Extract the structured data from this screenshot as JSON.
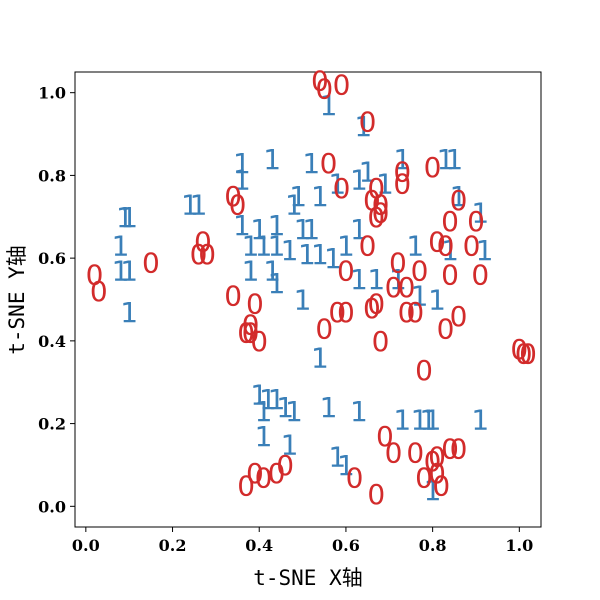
{
  "chart_data": {
    "type": "scatter",
    "title": "",
    "xlabel": "t-SNE X轴",
    "ylabel": "t-SNE Y轴",
    "xlim": [
      -0.025,
      1.05
    ],
    "ylim": [
      -0.05,
      1.05
    ],
    "xticks": [
      "0.0",
      "0.2",
      "0.4",
      "0.6",
      "0.8",
      "1.0"
    ],
    "yticks": [
      "0.0",
      "0.2",
      "0.4",
      "0.6",
      "0.8",
      "1.0"
    ],
    "grid": false,
    "legend": "none",
    "series": [
      {
        "marker": "1",
        "color": "#3a7fb8",
        "points": [
          [
            0.56,
            0.97
          ],
          [
            0.64,
            0.92
          ],
          [
            0.43,
            0.84
          ],
          [
            0.52,
            0.83
          ],
          [
            0.36,
            0.83
          ],
          [
            0.36,
            0.79
          ],
          [
            0.73,
            0.84
          ],
          [
            0.83,
            0.84
          ],
          [
            0.85,
            0.84
          ],
          [
            0.63,
            0.79
          ],
          [
            0.65,
            0.81
          ],
          [
            0.69,
            0.78
          ],
          [
            0.58,
            0.78
          ],
          [
            0.24,
            0.73
          ],
          [
            0.26,
            0.73
          ],
          [
            0.48,
            0.73
          ],
          [
            0.49,
            0.75
          ],
          [
            0.54,
            0.75
          ],
          [
            0.86,
            0.75
          ],
          [
            0.91,
            0.71
          ],
          [
            0.09,
            0.7
          ],
          [
            0.1,
            0.7
          ],
          [
            0.36,
            0.68
          ],
          [
            0.4,
            0.67
          ],
          [
            0.44,
            0.68
          ],
          [
            0.5,
            0.67
          ],
          [
            0.52,
            0.67
          ],
          [
            0.63,
            0.67
          ],
          [
            0.08,
            0.63
          ],
          [
            0.38,
            0.63
          ],
          [
            0.41,
            0.63
          ],
          [
            0.44,
            0.63
          ],
          [
            0.47,
            0.62
          ],
          [
            0.51,
            0.61
          ],
          [
            0.54,
            0.61
          ],
          [
            0.57,
            0.6
          ],
          [
            0.6,
            0.63
          ],
          [
            0.76,
            0.63
          ],
          [
            0.84,
            0.62
          ],
          [
            0.92,
            0.62
          ],
          [
            0.08,
            0.57
          ],
          [
            0.1,
            0.57
          ],
          [
            0.38,
            0.57
          ],
          [
            0.43,
            0.57
          ],
          [
            0.44,
            0.54
          ],
          [
            0.67,
            0.55
          ],
          [
            0.63,
            0.55
          ],
          [
            0.72,
            0.55
          ],
          [
            0.77,
            0.51
          ],
          [
            0.1,
            0.47
          ],
          [
            0.5,
            0.5
          ],
          [
            0.81,
            0.5
          ],
          [
            0.54,
            0.36
          ],
          [
            0.4,
            0.27
          ],
          [
            0.42,
            0.26
          ],
          [
            0.44,
            0.26
          ],
          [
            0.46,
            0.24
          ],
          [
            0.41,
            0.23
          ],
          [
            0.48,
            0.23
          ],
          [
            0.56,
            0.24
          ],
          [
            0.63,
            0.23
          ],
          [
            0.73,
            0.21
          ],
          [
            0.77,
            0.21
          ],
          [
            0.79,
            0.21
          ],
          [
            0.8,
            0.21
          ],
          [
            0.91,
            0.21
          ],
          [
            0.41,
            0.17
          ],
          [
            0.47,
            0.15
          ],
          [
            0.58,
            0.12
          ],
          [
            0.6,
            0.1
          ],
          [
            0.8,
            0.04
          ]
        ]
      },
      {
        "marker": "0",
        "color": "#d22b2b",
        "points": [
          [
            0.54,
            1.03
          ],
          [
            0.55,
            1.01
          ],
          [
            0.59,
            1.02
          ],
          [
            0.65,
            0.93
          ],
          [
            0.56,
            0.83
          ],
          [
            0.73,
            0.81
          ],
          [
            0.8,
            0.82
          ],
          [
            0.67,
            0.77
          ],
          [
            0.73,
            0.78
          ],
          [
            0.59,
            0.77
          ],
          [
            0.34,
            0.75
          ],
          [
            0.35,
            0.73
          ],
          [
            0.66,
            0.74
          ],
          [
            0.68,
            0.73
          ],
          [
            0.86,
            0.74
          ],
          [
            0.67,
            0.7
          ],
          [
            0.68,
            0.71
          ],
          [
            0.84,
            0.69
          ],
          [
            0.9,
            0.69
          ],
          [
            0.27,
            0.64
          ],
          [
            0.28,
            0.61
          ],
          [
            0.26,
            0.61
          ],
          [
            0.81,
            0.64
          ],
          [
            0.83,
            0.63
          ],
          [
            0.65,
            0.63
          ],
          [
            0.89,
            0.63
          ],
          [
            0.02,
            0.56
          ],
          [
            0.03,
            0.52
          ],
          [
            0.15,
            0.59
          ],
          [
            0.72,
            0.59
          ],
          [
            0.6,
            0.57
          ],
          [
            0.77,
            0.57
          ],
          [
            0.84,
            0.56
          ],
          [
            0.91,
            0.56
          ],
          [
            0.71,
            0.53
          ],
          [
            0.74,
            0.53
          ],
          [
            0.34,
            0.51
          ],
          [
            0.39,
            0.49
          ],
          [
            0.67,
            0.49
          ],
          [
            0.66,
            0.48
          ],
          [
            0.74,
            0.47
          ],
          [
            0.58,
            0.47
          ],
          [
            0.6,
            0.47
          ],
          [
            0.76,
            0.47
          ],
          [
            0.86,
            0.46
          ],
          [
            0.38,
            0.44
          ],
          [
            0.55,
            0.43
          ],
          [
            0.83,
            0.43
          ],
          [
            0.37,
            0.42
          ],
          [
            0.38,
            0.42
          ],
          [
            0.4,
            0.4
          ],
          [
            0.68,
            0.4
          ],
          [
            1.0,
            0.38
          ],
          [
            1.01,
            0.37
          ],
          [
            1.02,
            0.37
          ],
          [
            0.78,
            0.33
          ],
          [
            0.69,
            0.17
          ],
          [
            0.71,
            0.13
          ],
          [
            0.76,
            0.13
          ],
          [
            0.84,
            0.14
          ],
          [
            0.86,
            0.14
          ],
          [
            0.46,
            0.1
          ],
          [
            0.8,
            0.11
          ],
          [
            0.81,
            0.12
          ],
          [
            0.44,
            0.08
          ],
          [
            0.39,
            0.08
          ],
          [
            0.41,
            0.07
          ],
          [
            0.62,
            0.07
          ],
          [
            0.78,
            0.07
          ],
          [
            0.81,
            0.08
          ],
          [
            0.82,
            0.05
          ],
          [
            0.37,
            0.05
          ],
          [
            0.67,
            0.03
          ]
        ]
      }
    ]
  }
}
